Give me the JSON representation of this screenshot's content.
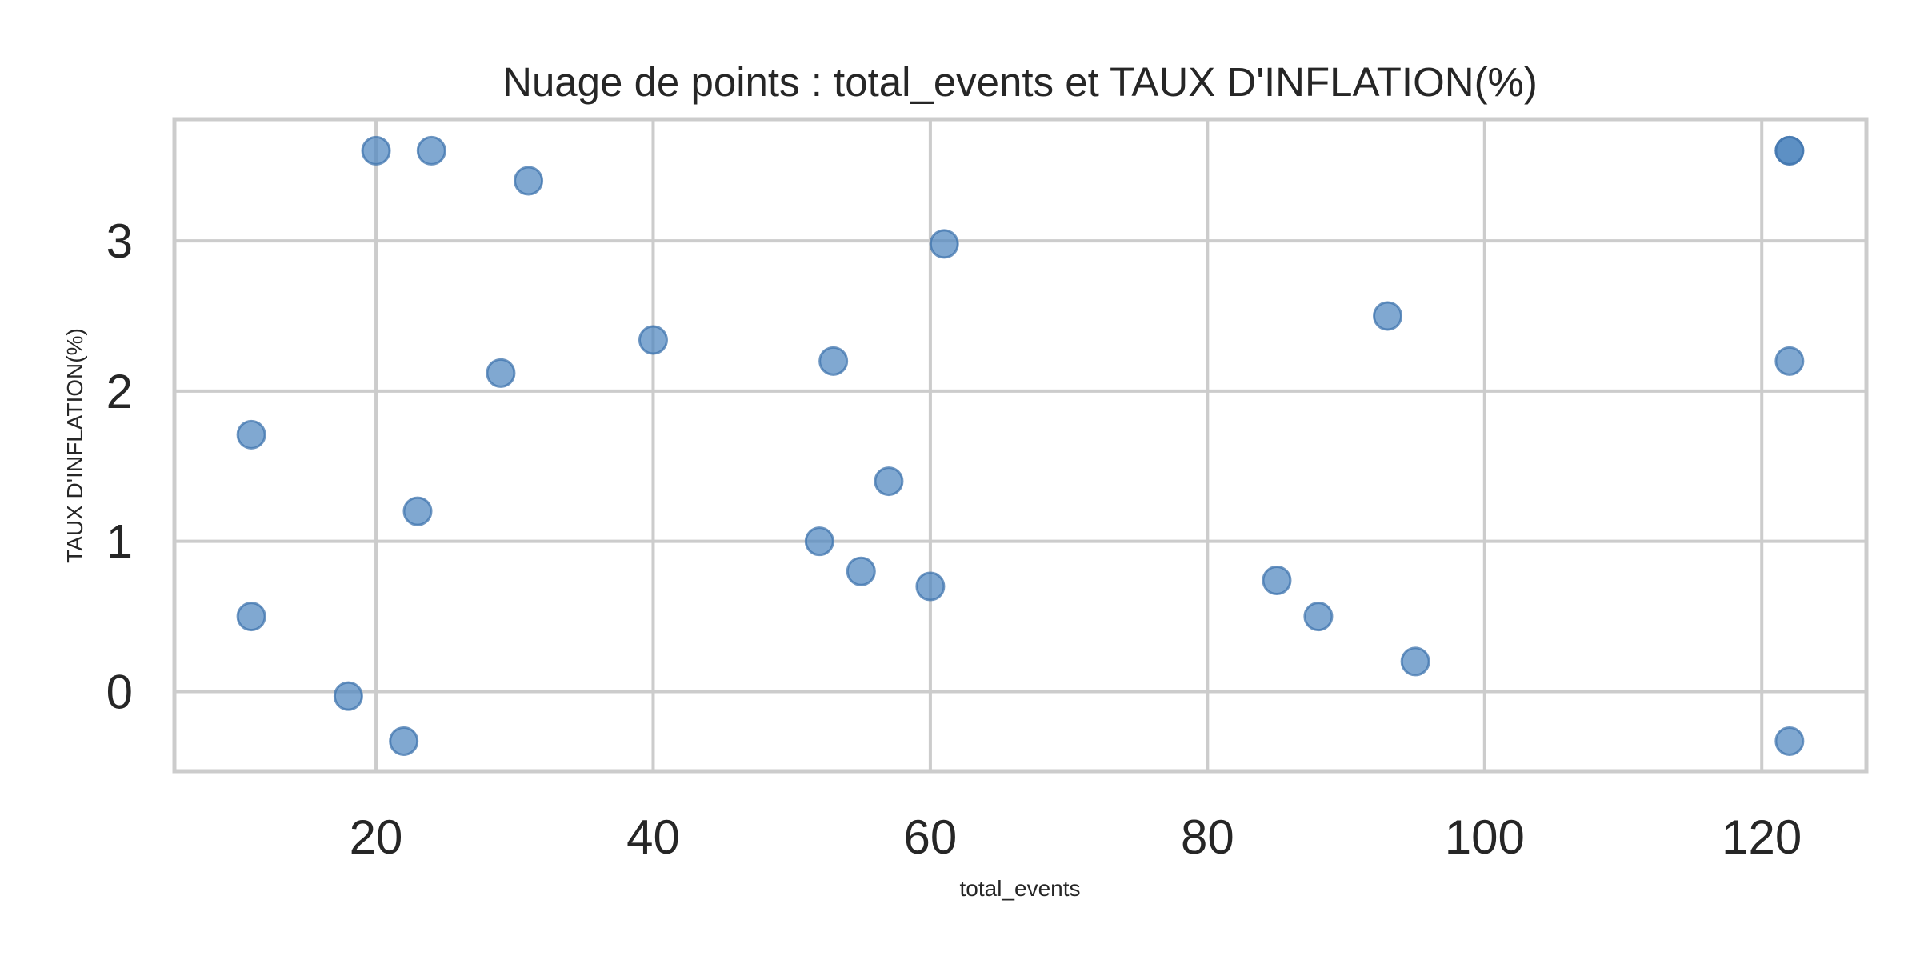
{
  "chart_data": {
    "type": "scatter",
    "title": "Nuage de points : total_events et TAUX D'INFLATION(%)",
    "xlabel": "total_events",
    "ylabel": "TAUX D'INFLATION(%)",
    "xlim": [
      5.45,
      127.55
    ],
    "ylim": [
      -0.53,
      3.81
    ],
    "xticks": [
      20,
      40,
      60,
      80,
      100,
      120
    ],
    "yticks": [
      0,
      1,
      2,
      3
    ],
    "grid": true,
    "legend": "none",
    "point_color": "#4f86bf",
    "point_edge_color": "#3f74ad",
    "grid_color": "#cccccc",
    "spine_color": "#cccccc",
    "series": [
      {
        "x": [
          20,
          24,
          31,
          61,
          40,
          29,
          53,
          11,
          23,
          57,
          52,
          55,
          60,
          11,
          18,
          22,
          93,
          85,
          88,
          95,
          122,
          122,
          122,
          122
        ],
        "y": [
          3.6,
          3.6,
          3.4,
          2.98,
          2.34,
          2.12,
          2.2,
          1.71,
          1.2,
          1.4,
          1.0,
          0.8,
          0.7,
          0.5,
          -0.03,
          -0.33,
          2.5,
          0.74,
          0.5,
          0.2,
          3.6,
          3.6,
          2.2,
          -0.33
        ]
      }
    ]
  }
}
